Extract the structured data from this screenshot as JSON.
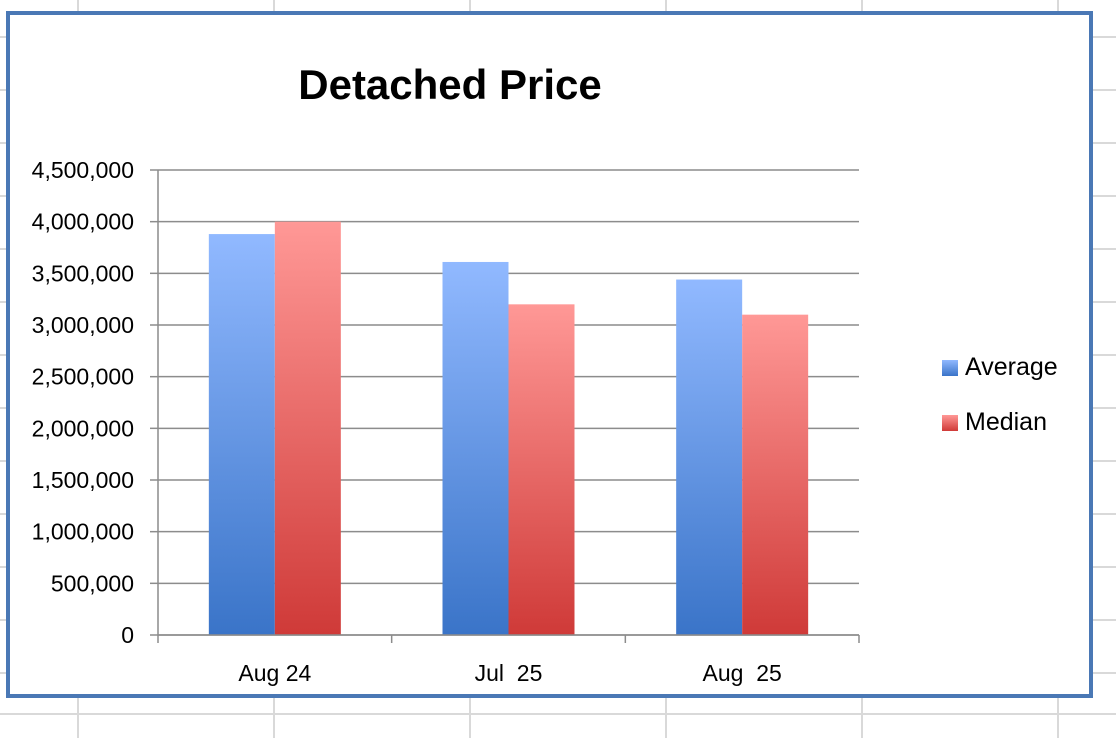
{
  "chart_data": {
    "type": "bar",
    "title": "Detached Price",
    "categories": [
      "Aug 24",
      "Jul  25",
      "Aug  25"
    ],
    "series": [
      {
        "name": "Average",
        "values": [
          3880000,
          3610000,
          3440000
        ],
        "color_top": "#91b9ff",
        "color_bottom": "#3a74c8"
      },
      {
        "name": "Median",
        "values": [
          4000000,
          3200000,
          3100000
        ],
        "color_top": "#ff9896",
        "color_bottom": "#cf3a38"
      }
    ],
    "ylim": [
      0,
      4500000
    ],
    "yticks": [
      0,
      500000,
      1000000,
      1500000,
      2000000,
      2500000,
      3000000,
      3500000,
      4000000,
      4500000
    ],
    "ytick_labels": [
      "0",
      "500,000",
      "1,000,000",
      "1,500,000",
      "2,000,000",
      "2,500,000",
      "3,000,000",
      "3,500,000",
      "4,000,000",
      "4,500,000"
    ],
    "grid": true,
    "legend_position": "right"
  }
}
